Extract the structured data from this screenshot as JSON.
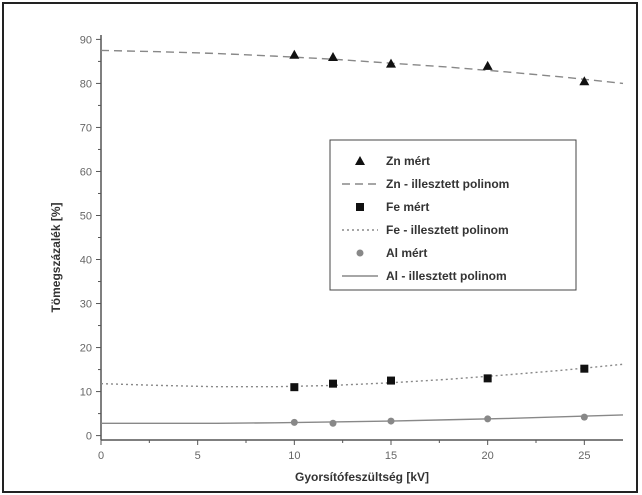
{
  "chart_data": {
    "type": "scatter",
    "xlabel": "Gyorsítófeszültség [kV]",
    "ylabel": "Tömegszázalék [%]",
    "xlim": [
      0,
      27
    ],
    "ylim": [
      -1,
      91
    ],
    "xticks": [
      0,
      5,
      10,
      15,
      20,
      25
    ],
    "yticks": [
      0,
      10,
      20,
      30,
      40,
      50,
      60,
      70,
      80,
      90
    ],
    "grid": false,
    "legend_position": "right-middle",
    "series": [
      {
        "name": "Zn mért",
        "kind": "points",
        "marker": "triangle",
        "color": "#111111",
        "x": [
          10,
          12,
          15,
          20,
          25
        ],
        "y": [
          86.5,
          86.0,
          84.5,
          84.0,
          80.5
        ]
      },
      {
        "name": "Zn - illesztett polinom",
        "kind": "line",
        "dash": "dashed",
        "color": "#888888",
        "x": [
          0,
          3,
          6,
          9,
          12,
          15,
          18,
          21,
          24,
          27
        ],
        "y": [
          87.5,
          87.2,
          86.8,
          86.2,
          85.5,
          84.6,
          83.7,
          82.6,
          81.4,
          80.0
        ]
      },
      {
        "name": "Fe mért",
        "kind": "points",
        "marker": "square",
        "color": "#111111",
        "x": [
          10,
          12,
          15,
          20,
          25
        ],
        "y": [
          11.0,
          11.8,
          12.5,
          13.0,
          15.2
        ]
      },
      {
        "name": "Fe - illesztett polinom",
        "kind": "line",
        "dash": "dotted",
        "color": "#888888",
        "x": [
          0,
          3,
          6,
          9,
          12,
          15,
          18,
          21,
          24,
          27
        ],
        "y": [
          11.8,
          11.4,
          11.1,
          11.1,
          11.4,
          12.0,
          12.8,
          13.8,
          14.9,
          16.2
        ]
      },
      {
        "name": "Al mért",
        "kind": "points",
        "marker": "circle",
        "color": "#888888",
        "x": [
          10,
          12,
          15,
          20,
          25
        ],
        "y": [
          3.0,
          2.8,
          3.3,
          3.8,
          4.2
        ]
      },
      {
        "name": "Al - illesztett polinom",
        "kind": "line",
        "dash": "solid",
        "color": "#888888",
        "x": [
          0,
          3,
          6,
          9,
          12,
          15,
          18,
          21,
          24,
          27
        ],
        "y": [
          2.8,
          2.8,
          2.8,
          2.9,
          3.1,
          3.3,
          3.6,
          3.9,
          4.3,
          4.7
        ]
      }
    ]
  }
}
